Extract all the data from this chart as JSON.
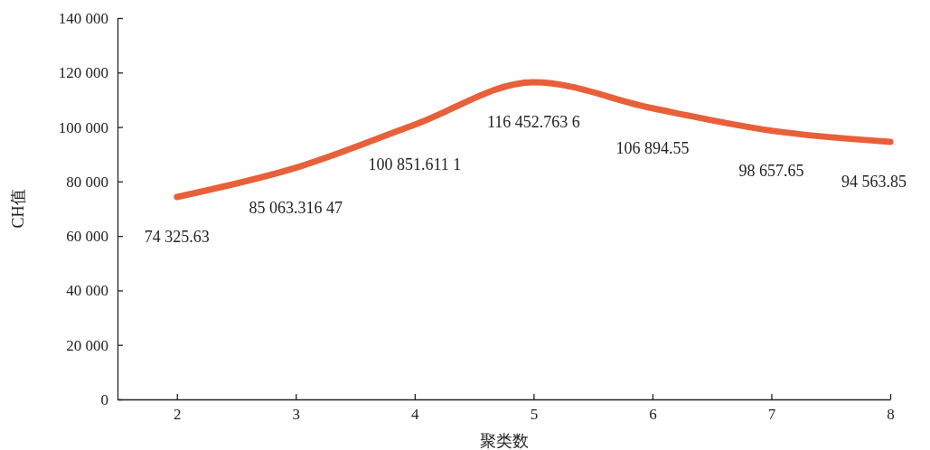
{
  "chart_data": {
    "type": "line",
    "xlabel": "聚类数",
    "ylabel": "CH值",
    "x": [
      2,
      3,
      4,
      5,
      6,
      7,
      8
    ],
    "series": [
      {
        "color": "#e8603a",
        "values": [
          74325.63,
          85063.31647,
          100851.6111,
          116452.7636,
          106894.55,
          98657.65,
          94563.85
        ]
      }
    ],
    "data_labels": true,
    "xlim": [
      1.5,
      8
    ],
    "xticks": [
      2,
      3,
      4,
      5,
      6,
      7,
      8
    ],
    "ylim": [
      0,
      140000
    ],
    "yticks": [
      {
        "value": 0,
        "label": "0"
      },
      {
        "value": 20000,
        "label": "20 000"
      },
      {
        "value": 40000,
        "label": "40 000"
      },
      {
        "value": 60000,
        "label": "60 000"
      },
      {
        "value": 80000,
        "label": "80 000"
      },
      {
        "value": 100000,
        "label": "100 000"
      },
      {
        "value": 120000,
        "label": "120 000"
      },
      {
        "value": 140000,
        "label": "140 000"
      }
    ],
    "grid": false,
    "marker": "none",
    "line_style": "solid"
  }
}
